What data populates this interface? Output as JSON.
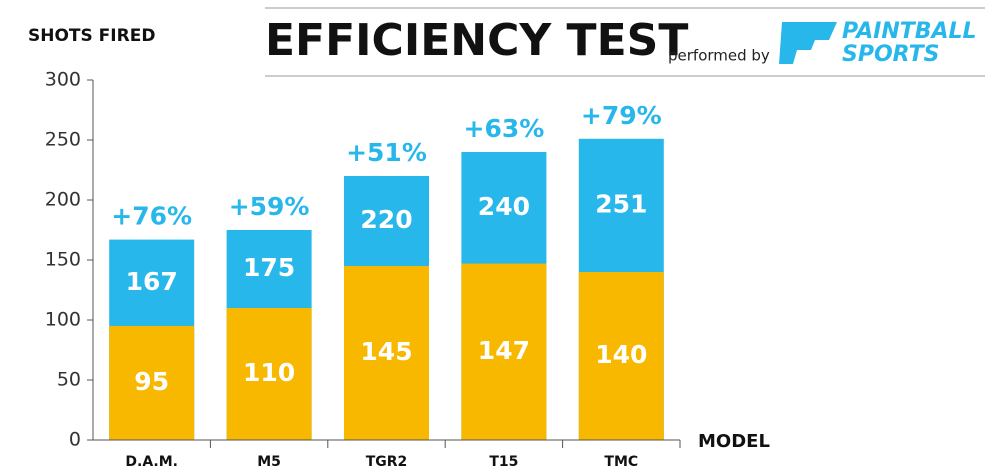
{
  "chart_data": {
    "type": "bar",
    "barmode": "overlay",
    "title": "EFFICIENCY TEST",
    "subtitle": "performed by",
    "logo": [
      "PAINTBALL",
      "SPORTS"
    ],
    "y_label": "SHOTS FIRED",
    "x_label": "MODEL",
    "categories": [
      "D.A.M.",
      "M5",
      "TGR2",
      "T15",
      "TMC"
    ],
    "series": [
      {
        "color": "#27b7ea",
        "values": [
          167,
          175,
          220,
          240,
          251
        ]
      },
      {
        "color": "#f9b800",
        "values": [
          95,
          110,
          145,
          147,
          140
        ]
      }
    ],
    "annotations": [
      "+76%",
      "+59%",
      "+51%",
      "+63%",
      "+79%"
    ],
    "ylim": [
      0,
      300
    ],
    "yticks": [
      0,
      50,
      100,
      150,
      200,
      250,
      300
    ],
    "grid": false
  }
}
